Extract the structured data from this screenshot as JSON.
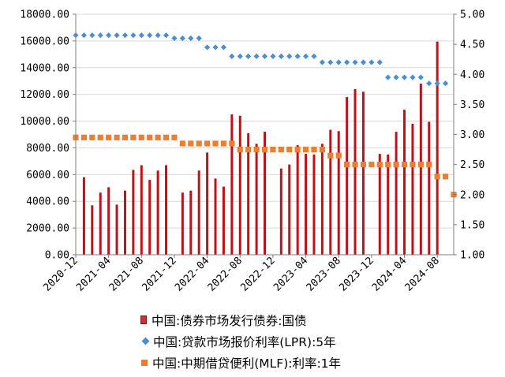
{
  "chart_data": {
    "type": "bar+scatter",
    "series": [
      {
        "name": "中国:债券市场发行债券:国债",
        "kind": "bar",
        "axis": "left",
        "color": "#c0101a",
        "values": [
          [
            1,
            5800
          ],
          [
            2,
            3700
          ],
          [
            3,
            4650
          ],
          [
            4,
            5050
          ],
          [
            5,
            3750
          ],
          [
            6,
            4800
          ],
          [
            7,
            6350
          ],
          [
            8,
            6700
          ],
          [
            9,
            5600
          ],
          [
            10,
            6300
          ],
          [
            11,
            6700
          ],
          [
            13,
            4650
          ],
          [
            14,
            4800
          ],
          [
            15,
            6300
          ],
          [
            16,
            7650
          ],
          [
            17,
            5700
          ],
          [
            18,
            5100
          ],
          [
            19,
            10500
          ],
          [
            20,
            10400
          ],
          [
            21,
            9100
          ],
          [
            22,
            8300
          ],
          [
            23,
            9200
          ],
          [
            25,
            6450
          ],
          [
            26,
            6750
          ],
          [
            27,
            8200
          ],
          [
            28,
            7550
          ],
          [
            29,
            7500
          ],
          [
            30,
            8300
          ],
          [
            31,
            9350
          ],
          [
            32,
            9250
          ],
          [
            33,
            11800
          ],
          [
            34,
            12400
          ],
          [
            35,
            12200
          ],
          [
            37,
            7550
          ],
          [
            38,
            7500
          ],
          [
            39,
            9200
          ],
          [
            40,
            10850
          ],
          [
            41,
            9800
          ],
          [
            42,
            12800
          ],
          [
            43,
            9950
          ],
          [
            44,
            15950
          ]
        ]
      },
      {
        "name": "中国:贷款市场报价利率(LPR):5年",
        "kind": "scatter",
        "axis": "right",
        "color": "#4a8fd6",
        "values": [
          [
            0,
            4.65
          ],
          [
            1,
            4.65
          ],
          [
            2,
            4.65
          ],
          [
            3,
            4.65
          ],
          [
            4,
            4.65
          ],
          [
            5,
            4.65
          ],
          [
            6,
            4.65
          ],
          [
            7,
            4.65
          ],
          [
            8,
            4.65
          ],
          [
            9,
            4.65
          ],
          [
            10,
            4.65
          ],
          [
            11,
            4.65
          ],
          [
            12,
            4.6
          ],
          [
            13,
            4.6
          ],
          [
            14,
            4.6
          ],
          [
            15,
            4.6
          ],
          [
            16,
            4.45
          ],
          [
            17,
            4.45
          ],
          [
            18,
            4.45
          ],
          [
            19,
            4.3
          ],
          [
            20,
            4.3
          ],
          [
            21,
            4.3
          ],
          [
            22,
            4.3
          ],
          [
            23,
            4.3
          ],
          [
            24,
            4.3
          ],
          [
            25,
            4.3
          ],
          [
            26,
            4.3
          ],
          [
            27,
            4.3
          ],
          [
            28,
            4.3
          ],
          [
            29,
            4.3
          ],
          [
            30,
            4.2
          ],
          [
            31,
            4.2
          ],
          [
            32,
            4.2
          ],
          [
            33,
            4.2
          ],
          [
            34,
            4.2
          ],
          [
            35,
            4.2
          ],
          [
            36,
            4.2
          ],
          [
            37,
            4.2
          ],
          [
            38,
            3.95
          ],
          [
            39,
            3.95
          ],
          [
            40,
            3.95
          ],
          [
            41,
            3.95
          ],
          [
            42,
            3.95
          ],
          [
            43,
            3.85
          ],
          [
            44,
            3.85
          ],
          [
            45,
            3.85
          ]
        ]
      },
      {
        "name": "中国:中期借贷便利(MLF):利率:1年",
        "kind": "scatter",
        "axis": "right",
        "color": "#ed7d31",
        "values": [
          [
            0,
            2.95
          ],
          [
            1,
            2.95
          ],
          [
            2,
            2.95
          ],
          [
            3,
            2.95
          ],
          [
            4,
            2.95
          ],
          [
            5,
            2.95
          ],
          [
            6,
            2.95
          ],
          [
            7,
            2.95
          ],
          [
            8,
            2.95
          ],
          [
            9,
            2.95
          ],
          [
            10,
            2.95
          ],
          [
            11,
            2.95
          ],
          [
            12,
            2.95
          ],
          [
            13,
            2.85
          ],
          [
            14,
            2.85
          ],
          [
            15,
            2.85
          ],
          [
            16,
            2.85
          ],
          [
            17,
            2.85
          ],
          [
            18,
            2.85
          ],
          [
            19,
            2.85
          ],
          [
            20,
            2.75
          ],
          [
            21,
            2.75
          ],
          [
            22,
            2.75
          ],
          [
            23,
            2.75
          ],
          [
            24,
            2.75
          ],
          [
            25,
            2.75
          ],
          [
            26,
            2.75
          ],
          [
            27,
            2.75
          ],
          [
            28,
            2.75
          ],
          [
            29,
            2.75
          ],
          [
            30,
            2.75
          ],
          [
            31,
            2.65
          ],
          [
            32,
            2.65
          ],
          [
            33,
            2.5
          ],
          [
            34,
            2.5
          ],
          [
            35,
            2.5
          ],
          [
            36,
            2.5
          ],
          [
            37,
            2.5
          ],
          [
            38,
            2.5
          ],
          [
            39,
            2.5
          ],
          [
            40,
            2.5
          ],
          [
            41,
            2.5
          ],
          [
            42,
            2.5
          ],
          [
            43,
            2.5
          ],
          [
            44,
            2.3
          ],
          [
            45,
            2.3
          ],
          [
            46,
            2.0
          ]
        ]
      }
    ],
    "x_ticks": [
      {
        "pos": 0,
        "label": "2020-12"
      },
      {
        "pos": 4,
        "label": "2021-04"
      },
      {
        "pos": 8,
        "label": "2021-08"
      },
      {
        "pos": 12,
        "label": "2021-12"
      },
      {
        "pos": 16,
        "label": "2022-04"
      },
      {
        "pos": 20,
        "label": "2022-08"
      },
      {
        "pos": 24,
        "label": "2022-12"
      },
      {
        "pos": 28,
        "label": "2023-04"
      },
      {
        "pos": 32,
        "label": "2023-08"
      },
      {
        "pos": 36,
        "label": "2023-12"
      },
      {
        "pos": 40,
        "label": "2024-04"
      },
      {
        "pos": 44,
        "label": "2024-08"
      }
    ],
    "xlim": [
      0,
      46
    ],
    "y_left": {
      "range": [
        0,
        18000
      ],
      "ticks": [
        "0.00",
        "2000.00",
        "4000.00",
        "6000.00",
        "8000.00",
        "10000.00",
        "12000.00",
        "14000.00",
        "16000.00",
        "18000.00"
      ]
    },
    "y_right": {
      "range": [
        1.0,
        5.0
      ],
      "ticks": [
        "1.00",
        "1.50",
        "2.00",
        "2.50",
        "3.00",
        "3.50",
        "4.00",
        "4.50",
        "5.00"
      ]
    },
    "grid": "horizontal",
    "legend_position": "bottom"
  }
}
